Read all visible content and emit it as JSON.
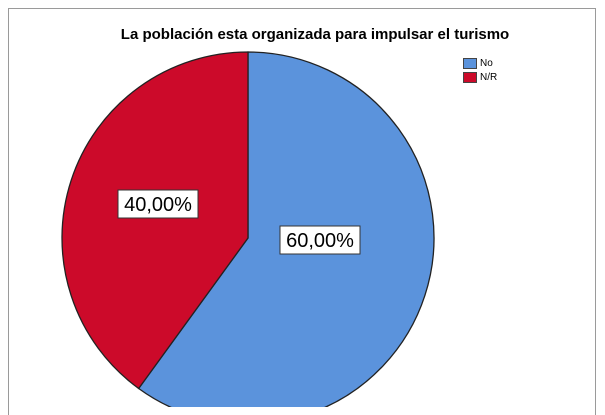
{
  "chart_data": {
    "type": "pie",
    "title": "La población esta organizada para impulsar el turismo",
    "legend_position": "top-right",
    "categories": [
      "No",
      "N/R"
    ],
    "values": [
      60.0,
      40.0
    ],
    "labels": [
      "60,00%",
      "40,00%"
    ],
    "colors": [
      "#5b93dc",
      "#cc0a2a"
    ]
  }
}
